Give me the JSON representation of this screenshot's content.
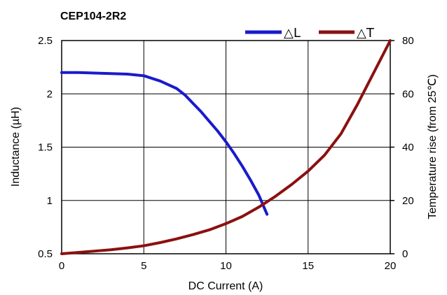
{
  "chart_data": {
    "type": "line",
    "title": "CEP104-2R2",
    "xlabel": "DC Current (A)",
    "ylabel_left": "Inductance (µH)",
    "ylabel_right": "Temperature rise (from 25℃)",
    "xlim": [
      0,
      20
    ],
    "ylim_left": [
      0.5,
      2.5
    ],
    "ylim_right": [
      0,
      80
    ],
    "x_ticks": [
      "0",
      "5",
      "10",
      "15",
      "20"
    ],
    "y_left_ticks": [
      "0.5",
      "1",
      "1.5",
      "2",
      "2.5"
    ],
    "y_right_ticks": [
      "0",
      "20",
      "40",
      "60",
      "80"
    ],
    "grid": true,
    "legend_position": "top-right",
    "series": [
      {
        "name": "△L",
        "axis": "left",
        "color": "#1a1acc",
        "x": [
          0,
          1,
          2,
          3,
          4,
          5,
          6,
          7,
          7.5,
          8,
          8.5,
          9,
          9.5,
          10,
          10.5,
          11,
          11.5,
          12,
          12.5
        ],
        "y": [
          2.2,
          2.2,
          2.195,
          2.19,
          2.185,
          2.17,
          2.12,
          2.05,
          1.99,
          1.91,
          1.83,
          1.74,
          1.65,
          1.55,
          1.44,
          1.32,
          1.19,
          1.05,
          0.87
        ]
      },
      {
        "name": "△T",
        "axis": "right",
        "color": "#8b1010",
        "x": [
          0,
          1,
          2,
          3,
          4,
          5,
          6,
          7,
          8,
          9,
          10,
          11,
          12,
          13,
          14,
          15,
          16,
          17,
          18,
          19,
          20
        ],
        "y": [
          0,
          0.5,
          1,
          1.5,
          2.2,
          3,
          4.2,
          5.6,
          7.2,
          9,
          11.3,
          14,
          17.5,
          21.5,
          26,
          31,
          37,
          45,
          56,
          68,
          80
        ]
      }
    ]
  }
}
